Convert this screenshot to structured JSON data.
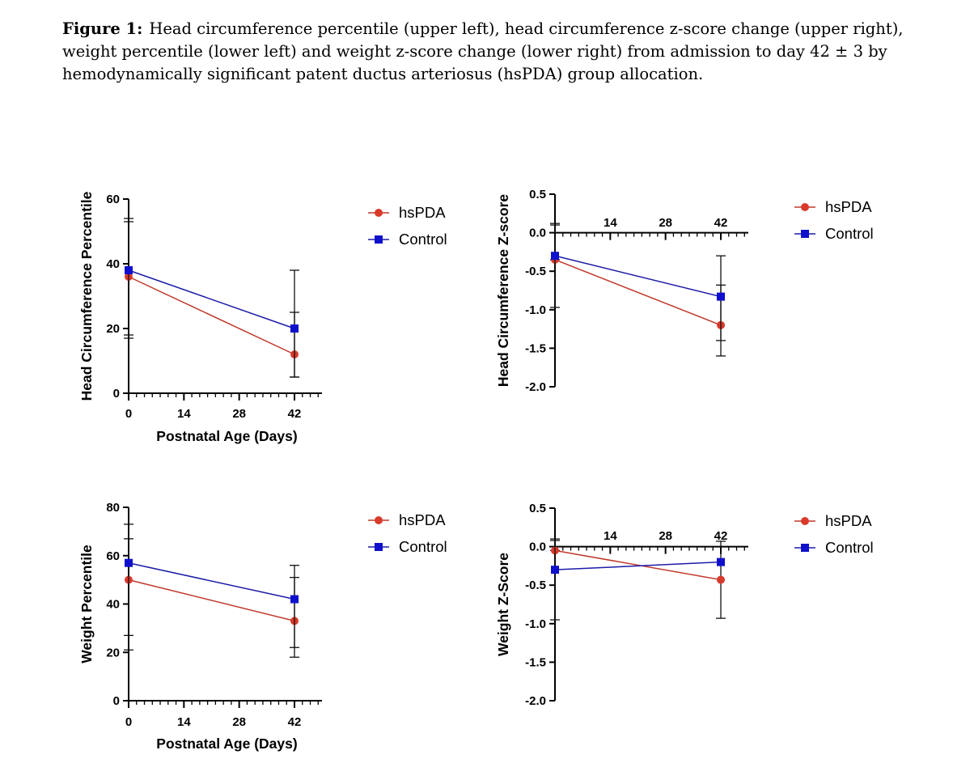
{
  "caption": {
    "label": "Figure 1:",
    "text": "Head circumference percentile (upper left), head circumference z-score change (upper right), weight percentile (lower left) and weight z-score change (lower right) from admission to day 42 ± 3 by hemodynamically significant patent ductus arteriosus (hsPDA) group allocation."
  },
  "colors": {
    "hsPDA": "#d93a2b",
    "Control": "#1010cc",
    "hsPDA_line": "#c0392b",
    "Control_line": "#1c1ca8"
  },
  "chart_data": [
    {
      "id": "hc-percentile",
      "type": "line",
      "ylabel": "Head Circumference Percentile",
      "xlabel": "Postnatal Age (Days)",
      "xticks": [
        0,
        14,
        28,
        42
      ],
      "yticks": [
        0,
        20,
        40,
        60
      ],
      "xlim": [
        0,
        48
      ],
      "ylim": [
        0,
        60
      ],
      "x_at_zero": false,
      "legend": [
        "hsPDA",
        "Control"
      ],
      "series": [
        {
          "name": "hsPDA",
          "x": [
            0,
            42
          ],
          "y": [
            36,
            12
          ],
          "err_low": [
            18,
            5
          ],
          "err_high": [
            54,
            25
          ]
        },
        {
          "name": "Control",
          "x": [
            0,
            42
          ],
          "y": [
            38,
            20
          ],
          "err_low": [
            17,
            5
          ],
          "err_high": [
            53,
            38
          ]
        }
      ]
    },
    {
      "id": "hc-zscore",
      "type": "line",
      "ylabel": "Head Circumference Z-score",
      "xlabel": "",
      "xticks": [
        14,
        28,
        42
      ],
      "yticks": [
        -2.0,
        -1.5,
        -1.0,
        -0.5,
        0.0,
        0.5
      ],
      "xlim": [
        0,
        48
      ],
      "ylim": [
        -2.0,
        0.5
      ],
      "x_at_zero": true,
      "legend": [
        "hsPDA",
        "Control"
      ],
      "series": [
        {
          "name": "hsPDA",
          "x": [
            0,
            42
          ],
          "y": [
            -0.35,
            -1.2
          ],
          "err_low": [
            -0.35,
            -1.6
          ],
          "err_high": [
            0.1,
            -0.3
          ]
        },
        {
          "name": "Control",
          "x": [
            0,
            42
          ],
          "y": [
            -0.3,
            -0.83
          ],
          "err_low": [
            -0.97,
            -1.4
          ],
          "err_high": [
            0.12,
            -0.68
          ]
        }
      ]
    },
    {
      "id": "weight-percentile",
      "type": "line",
      "ylabel": "Weight Percentile",
      "xlabel": "Postnatal Age (Days)",
      "xticks": [
        0,
        14,
        28,
        42
      ],
      "yticks": [
        0,
        20,
        40,
        60,
        80
      ],
      "xlim": [
        0,
        48
      ],
      "ylim": [
        0,
        80
      ],
      "x_at_zero": false,
      "legend": [
        "hsPDA",
        "Control"
      ],
      "series": [
        {
          "name": "hsPDA",
          "x": [
            0,
            42
          ],
          "y": [
            50,
            33
          ],
          "err_low": [
            21,
            18
          ],
          "err_high": [
            73,
            51
          ]
        },
        {
          "name": "Control",
          "x": [
            0,
            42
          ],
          "y": [
            57,
            42
          ],
          "err_low": [
            27,
            22
          ],
          "err_high": [
            67,
            56
          ]
        }
      ]
    },
    {
      "id": "weight-zscore",
      "type": "line",
      "ylabel": "Weight Z-Score",
      "xlabel": "",
      "xticks": [
        14,
        28,
        42
      ],
      "yticks": [
        -2.0,
        -1.5,
        -1.0,
        -0.5,
        0.0,
        0.5
      ],
      "xlim": [
        0,
        48
      ],
      "ylim": [
        -2.0,
        0.5
      ],
      "x_at_zero": true,
      "legend": [
        "hsPDA",
        "Control"
      ],
      "series": [
        {
          "name": "hsPDA",
          "x": [
            0,
            42
          ],
          "y": [
            -0.05,
            -0.43
          ],
          "err_low": [
            -0.05,
            -0.93
          ],
          "err_high": [
            0.1,
            0.07
          ]
        },
        {
          "name": "Control",
          "x": [
            0,
            42
          ],
          "y": [
            -0.3,
            -0.2
          ],
          "err_low": [
            -0.95,
            -0.2
          ],
          "err_high": [
            0.08,
            -0.2
          ]
        }
      ]
    }
  ]
}
